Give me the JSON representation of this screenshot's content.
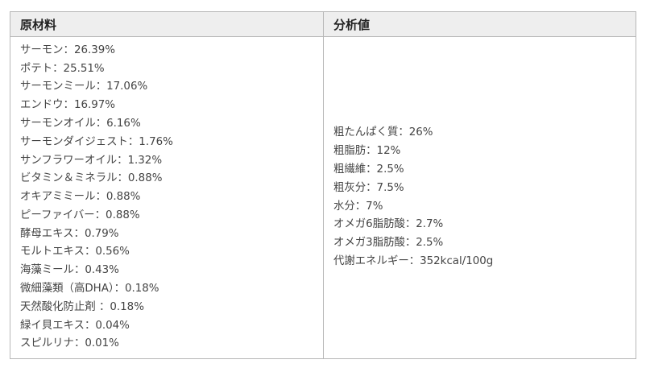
{
  "table": {
    "headers": {
      "ingredients": "原材料",
      "analysis": "分析値"
    },
    "ingredients": [
      "サーモン：26.39%",
      "ポテト：25.51%",
      "サーモンミール：17.06%",
      "エンドウ：16.97%",
      "サーモンオイル：6.16%",
      "サーモンダイジェスト：1.76%",
      "サンフラワーオイル：1.32%",
      "ビタミン＆ミネラル：0.88%",
      "オキアミミール：0.88%",
      "ピーファイバー：0.88%",
      "酵母エキス：0.79%",
      "モルトエキス：0.56%",
      "海藻ミール：0.43%",
      "微細藻類（高DHA）：0.18%",
      "天然酸化防止剤 ：0.18%",
      "緑イ貝エキス：0.04%",
      "スピルリナ：0.01%"
    ],
    "analysis": [
      "粗たんぱく質：26%",
      "粗脂肪：12%",
      "粗繊維：2.5%",
      "粗灰分：7.5%",
      "水分：7%",
      "オメガ6脂肪酸：2.7%",
      "オメガ3脂肪酸：2.5%",
      "代謝エネルギー：352kcal/100g"
    ]
  }
}
